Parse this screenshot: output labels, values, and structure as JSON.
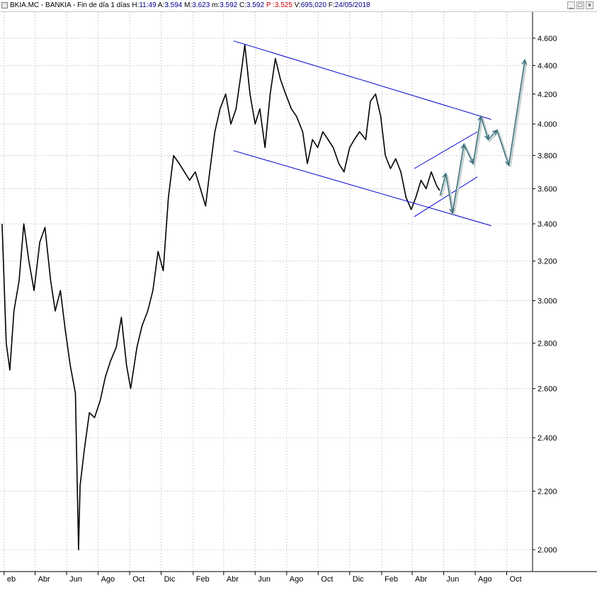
{
  "header": {
    "symbol": "BKIA.MC",
    "sep1": "-",
    "name": "BANKIA",
    "sep2": "-",
    "period": "Fin de día 1 días",
    "h_label": "H:",
    "h_value": "11:49",
    "a_label": "A:",
    "a_value": "3.594",
    "m_label": "M:",
    "m_value": "3.623",
    "min_label": "m:",
    "min_value": "3.592",
    "c_label": "C:",
    "c_value": "3.592",
    "p_label": "P :",
    "p_value": "3.525",
    "v_label": "V:",
    "v_value": "695,020",
    "f_label": "F:",
    "f_value": "24/05/2018"
  },
  "window_buttons": {
    "minimize": "_",
    "maximize": "□",
    "close": "×"
  },
  "colors": {
    "price": "#000000",
    "channel": "#0000cc",
    "projection": "#3a6f7a",
    "grid": "#b0b0b0",
    "close_label": "#d00000"
  },
  "chart_data": {
    "type": "line",
    "title": "BKIA.MC - BANKIA - Fin de día 1 días",
    "y_scale": "log",
    "ylim": [
      1.93,
      4.8
    ],
    "y_ticks": [
      "4.600",
      "4.400",
      "4.200",
      "4.000",
      "3.800",
      "3.600",
      "3.400",
      "3.200",
      "3.000",
      "2.800",
      "2.600",
      "2.400",
      "2.200",
      "2.000"
    ],
    "y_tick_values": [
      4.6,
      4.4,
      4.2,
      4.0,
      3.8,
      3.6,
      3.4,
      3.2,
      3.0,
      2.8,
      2.6,
      2.4,
      2.2,
      2.0
    ],
    "x_ticks": [
      "eb",
      "Abr",
      "Jun",
      "Ago",
      "Oct",
      "Dic",
      "Feb",
      "Abr",
      "Jun",
      "Ago",
      "Oct",
      "Dic",
      "Feb",
      "Abr",
      "Jun",
      "Ago",
      "Oct"
    ],
    "x_tick_dates": [
      "2016-02",
      "2016-04",
      "2016-06",
      "2016-08",
      "2016-10",
      "2016-12",
      "2017-02",
      "2017-04",
      "2017-06",
      "2017-08",
      "2017-10",
      "2017-12",
      "2018-02",
      "2018-04",
      "2018-06",
      "2018-08",
      "2018-10"
    ],
    "grid": true,
    "series": [
      {
        "type": "price",
        "points": [
          [
            "2016-01-28",
            3.4
          ],
          [
            "2016-02-05",
            2.8
          ],
          [
            "2016-02-12",
            2.68
          ],
          [
            "2016-02-20",
            2.95
          ],
          [
            "2016-03-01",
            3.1
          ],
          [
            "2016-03-10",
            3.4
          ],
          [
            "2016-03-20",
            3.2
          ],
          [
            "2016-03-30",
            3.05
          ],
          [
            "2016-04-10",
            3.3
          ],
          [
            "2016-04-20",
            3.38
          ],
          [
            "2016-05-01",
            3.1
          ],
          [
            "2016-05-10",
            2.95
          ],
          [
            "2016-05-20",
            3.05
          ],
          [
            "2016-05-30",
            2.85
          ],
          [
            "2016-06-08",
            2.7
          ],
          [
            "2016-06-18",
            2.58
          ],
          [
            "2016-06-24",
            2.0
          ],
          [
            "2016-06-27",
            2.22
          ],
          [
            "2016-07-05",
            2.35
          ],
          [
            "2016-07-15",
            2.5
          ],
          [
            "2016-07-25",
            2.48
          ],
          [
            "2016-08-05",
            2.55
          ],
          [
            "2016-08-15",
            2.65
          ],
          [
            "2016-08-25",
            2.72
          ],
          [
            "2016-09-05",
            2.78
          ],
          [
            "2016-09-15",
            2.92
          ],
          [
            "2016-09-25",
            2.7
          ],
          [
            "2016-10-03",
            2.6
          ],
          [
            "2016-10-15",
            2.78
          ],
          [
            "2016-10-25",
            2.88
          ],
          [
            "2016-11-05",
            2.95
          ],
          [
            "2016-11-15",
            3.05
          ],
          [
            "2016-11-25",
            3.25
          ],
          [
            "2016-12-05",
            3.15
          ],
          [
            "2016-12-15",
            3.55
          ],
          [
            "2016-12-25",
            3.8
          ],
          [
            "2017-01-05",
            3.75
          ],
          [
            "2017-01-15",
            3.7
          ],
          [
            "2017-01-25",
            3.65
          ],
          [
            "2017-02-05",
            3.7
          ],
          [
            "2017-02-15",
            3.6
          ],
          [
            "2017-02-25",
            3.5
          ],
          [
            "2017-03-05",
            3.7
          ],
          [
            "2017-03-15",
            3.95
          ],
          [
            "2017-03-25",
            4.1
          ],
          [
            "2017-04-05",
            4.2
          ],
          [
            "2017-04-15",
            4.0
          ],
          [
            "2017-04-25",
            4.1
          ],
          [
            "2017-05-05",
            4.35
          ],
          [
            "2017-05-12",
            4.55
          ],
          [
            "2017-05-22",
            4.2
          ],
          [
            "2017-06-01",
            4.0
          ],
          [
            "2017-06-10",
            4.1
          ],
          [
            "2017-06-20",
            3.85
          ],
          [
            "2017-06-30",
            4.2
          ],
          [
            "2017-07-10",
            4.45
          ],
          [
            "2017-07-20",
            4.3
          ],
          [
            "2017-07-30",
            4.2
          ],
          [
            "2017-08-10",
            4.1
          ],
          [
            "2017-08-20",
            4.05
          ],
          [
            "2017-09-01",
            3.95
          ],
          [
            "2017-09-10",
            3.75
          ],
          [
            "2017-09-20",
            3.9
          ],
          [
            "2017-09-30",
            3.85
          ],
          [
            "2017-10-10",
            3.95
          ],
          [
            "2017-10-20",
            3.9
          ],
          [
            "2017-10-30",
            3.85
          ],
          [
            "2017-11-10",
            3.75
          ],
          [
            "2017-11-20",
            3.7
          ],
          [
            "2017-12-01",
            3.85
          ],
          [
            "2017-12-10",
            3.9
          ],
          [
            "2017-12-20",
            3.95
          ],
          [
            "2018-01-01",
            3.9
          ],
          [
            "2018-01-10",
            4.15
          ],
          [
            "2018-01-20",
            4.2
          ],
          [
            "2018-01-30",
            4.05
          ],
          [
            "2018-02-08",
            3.8
          ],
          [
            "2018-02-18",
            3.72
          ],
          [
            "2018-02-28",
            3.78
          ],
          [
            "2018-03-10",
            3.7
          ],
          [
            "2018-03-20",
            3.55
          ],
          [
            "2018-03-30",
            3.48
          ],
          [
            "2018-04-08",
            3.55
          ],
          [
            "2018-04-18",
            3.65
          ],
          [
            "2018-04-28",
            3.6
          ],
          [
            "2018-05-08",
            3.7
          ],
          [
            "2018-05-18",
            3.62
          ],
          [
            "2018-05-24",
            3.59
          ]
        ]
      },
      {
        "type": "channel-upper",
        "points": [
          [
            "2017-04-20",
            4.58
          ],
          [
            "2018-09-01",
            4.03
          ]
        ]
      },
      {
        "type": "channel-lower",
        "points": [
          [
            "2017-04-20",
            3.83
          ],
          [
            "2018-09-01",
            3.39
          ]
        ]
      },
      {
        "type": "short-channel-upper",
        "points": [
          [
            "2018-04-05",
            3.72
          ],
          [
            "2018-08-05",
            3.95
          ]
        ]
      },
      {
        "type": "short-channel-lower",
        "points": [
          [
            "2018-04-05",
            3.44
          ],
          [
            "2018-08-05",
            3.67
          ]
        ]
      },
      {
        "type": "projection",
        "points": [
          [
            "2018-05-25",
            3.56
          ],
          [
            "2018-06-05",
            3.69
          ],
          [
            "2018-06-18",
            3.46
          ],
          [
            "2018-07-10",
            3.87
          ],
          [
            "2018-07-28",
            3.75
          ],
          [
            "2018-08-12",
            4.05
          ],
          [
            "2018-08-26",
            3.9
          ],
          [
            "2018-09-12",
            3.96
          ],
          [
            "2018-10-05",
            3.74
          ],
          [
            "2018-11-05",
            4.44
          ]
        ]
      }
    ]
  }
}
